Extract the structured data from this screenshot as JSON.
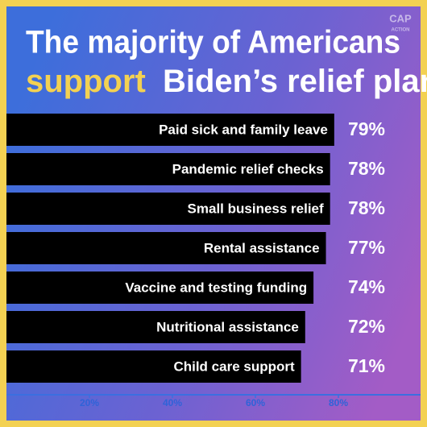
{
  "chart_data": {
    "type": "bar",
    "orientation": "horizontal",
    "title": [
      "The majority of Americans",
      "support",
      "Biden’s relief plan"
    ],
    "logo_text": [
      "CAP",
      "ACTION"
    ],
    "categories": [
      "Paid sick and family leave",
      "Pandemic relief checks",
      "Small business relief",
      "Rental assistance",
      "Vaccine and testing funding",
      "Nutritional assistance",
      "Child care support"
    ],
    "values": [
      79,
      78,
      78,
      77,
      74,
      72,
      71
    ],
    "value_labels": [
      "79%",
      "78%",
      "78%",
      "77%",
      "74%",
      "72%",
      "71%"
    ],
    "color": "#000000",
    "xlim": [
      0,
      100
    ],
    "xticks": [
      {
        "value": 20,
        "label": "20%"
      },
      {
        "value": 40,
        "label": "40%"
      },
      {
        "value": 60,
        "label": "60%"
      },
      {
        "value": 80,
        "label": "80%"
      }
    ]
  }
}
